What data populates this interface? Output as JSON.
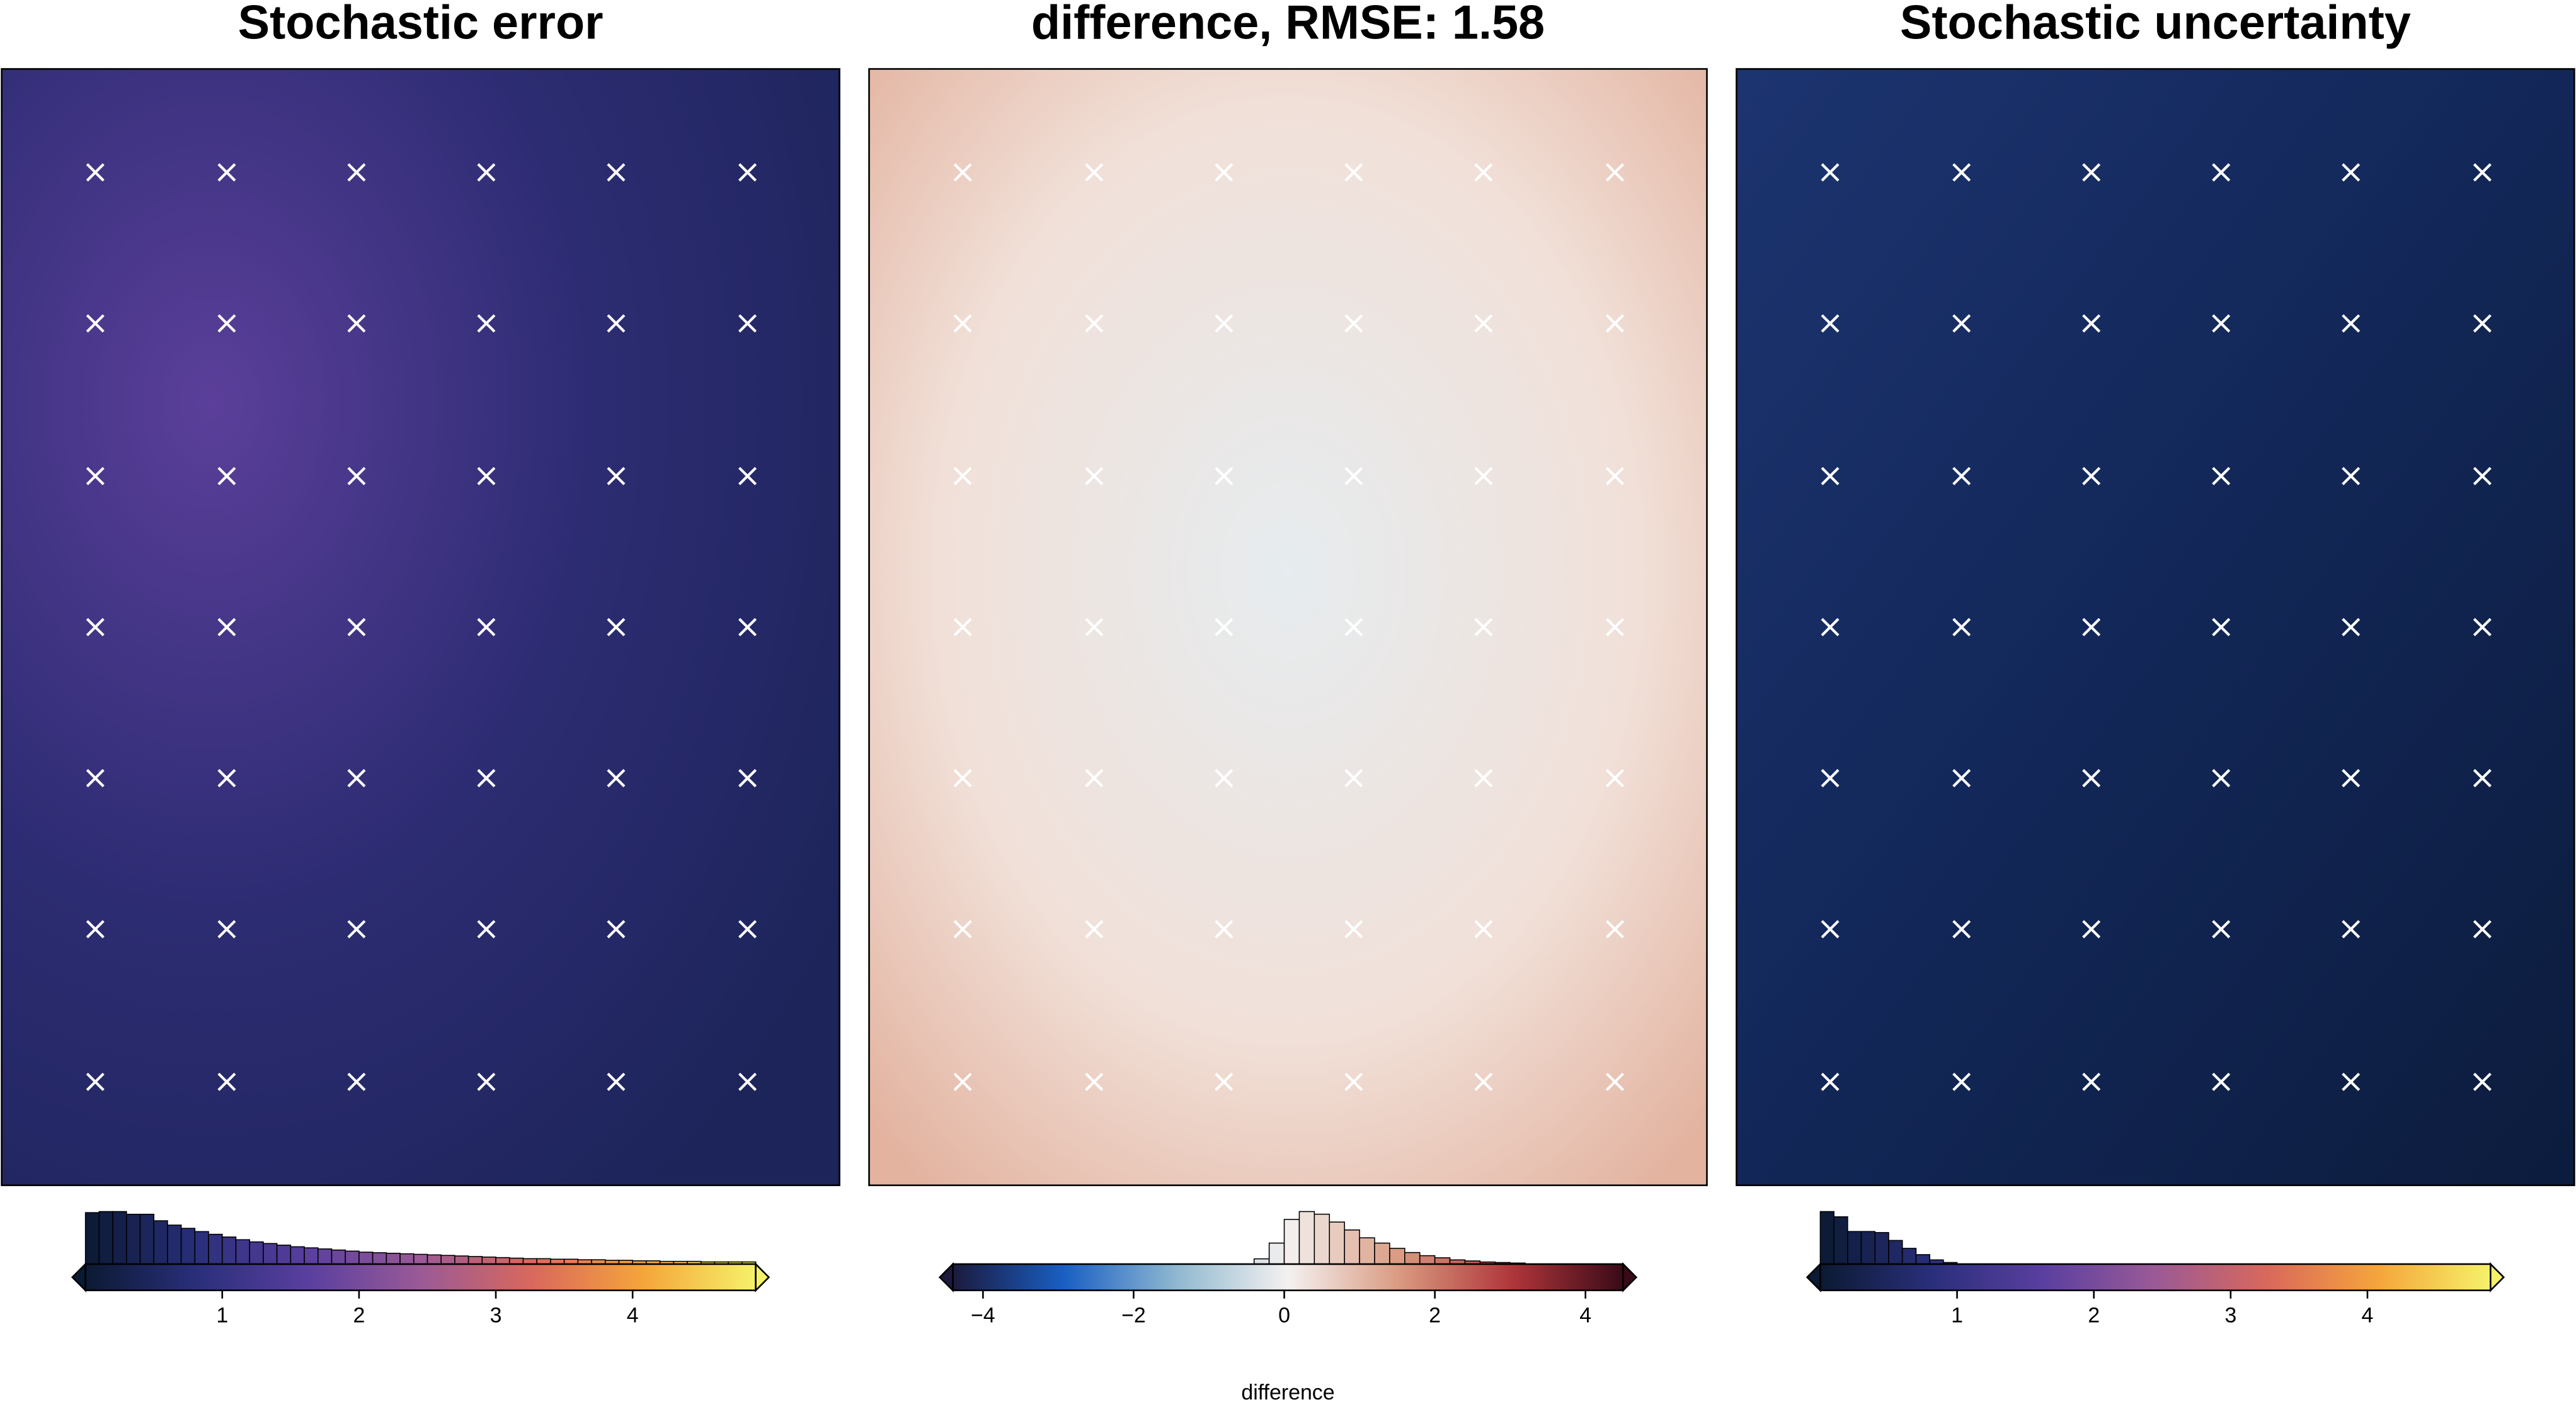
{
  "chart_data": [
    {
      "type": "heatmap",
      "title": "Stochastic error",
      "hist": {
        "bins": [
          0,
          0.1,
          0.2,
          0.3,
          0.4,
          0.5,
          0.6,
          0.7,
          0.8,
          0.9,
          1,
          1.1,
          1.2,
          1.3,
          1.4,
          1.5,
          1.6,
          1.7,
          1.8,
          1.9,
          2,
          2.1,
          2.2,
          2.3,
          2.4,
          2.5,
          2.6,
          2.7,
          2.8,
          2.9,
          3,
          3.1,
          3.2,
          3.3,
          3.4,
          3.5,
          3.6,
          3.7,
          3.8,
          3.9,
          4,
          4.1,
          4.2,
          4.3,
          4.4,
          4.5,
          4.6,
          4.7,
          4.8,
          4.9
        ],
        "counts": [
          95,
          97,
          97,
          92,
          92,
          80,
          72,
          66,
          60,
          55,
          50,
          45,
          41,
          38,
          35,
          32,
          30,
          28,
          26,
          24,
          22,
          21,
          20,
          19,
          18,
          17,
          16,
          15,
          14,
          13,
          12,
          11,
          10,
          10,
          9,
          9,
          8,
          8,
          7,
          7,
          6,
          6,
          5,
          5,
          5,
          4,
          4,
          4,
          4
        ]
      },
      "colorbar": {
        "xlim": [
          0,
          4.9
        ],
        "xticks": [
          1,
          2,
          3,
          4
        ],
        "colors": [
          "#0b1a33",
          "#2a2f7a",
          "#5a3fa0",
          "#9a5a96",
          "#d9685c",
          "#f5a53b",
          "#f5f26a"
        ]
      }
    },
    {
      "type": "heatmap",
      "title": "difference, RMSE: 1.58",
      "hist": {
        "bins": [
          -0.4,
          -0.2,
          0,
          0.2,
          0.4,
          0.6,
          0.8,
          1,
          1.2,
          1.4,
          1.6,
          1.8,
          2,
          2.2,
          2.4,
          2.6,
          2.8,
          3,
          3.2
        ],
        "counts": [
          10,
          40,
          85,
          100,
          95,
          80,
          65,
          50,
          40,
          30,
          22,
          16,
          12,
          8,
          6,
          4,
          3,
          2
        ]
      },
      "colorbar": {
        "xlim": [
          -4.4,
          4.5
        ],
        "xticks": [
          {
            "value": -4,
            "label": "−4"
          },
          {
            "value": -2,
            "label": "−2"
          },
          0,
          2,
          4
        ],
        "label": "difference",
        "colors": [
          "#1b1a3d",
          "#1a5fc4",
          "#8fb8d0",
          "#f4f1f0",
          "#d99a80",
          "#b0363a",
          "#3a0a18"
        ]
      }
    },
    {
      "type": "heatmap",
      "title": "Stochastic uncertainty",
      "hist": {
        "bins": [
          0,
          0.1,
          0.2,
          0.3,
          0.4,
          0.5,
          0.6,
          0.7,
          0.8,
          0.9,
          1.0
        ],
        "counts": [
          100,
          90,
          62,
          62,
          60,
          45,
          30,
          18,
          8,
          3
        ]
      },
      "colorbar": {
        "xlim": [
          0,
          4.9
        ],
        "xticks": [
          1,
          2,
          3,
          4
        ],
        "colors": [
          "#0b1a33",
          "#2a2f7a",
          "#5a3fa0",
          "#9a5a96",
          "#d9685c",
          "#f5a53b",
          "#f5f26a"
        ]
      }
    }
  ]
}
